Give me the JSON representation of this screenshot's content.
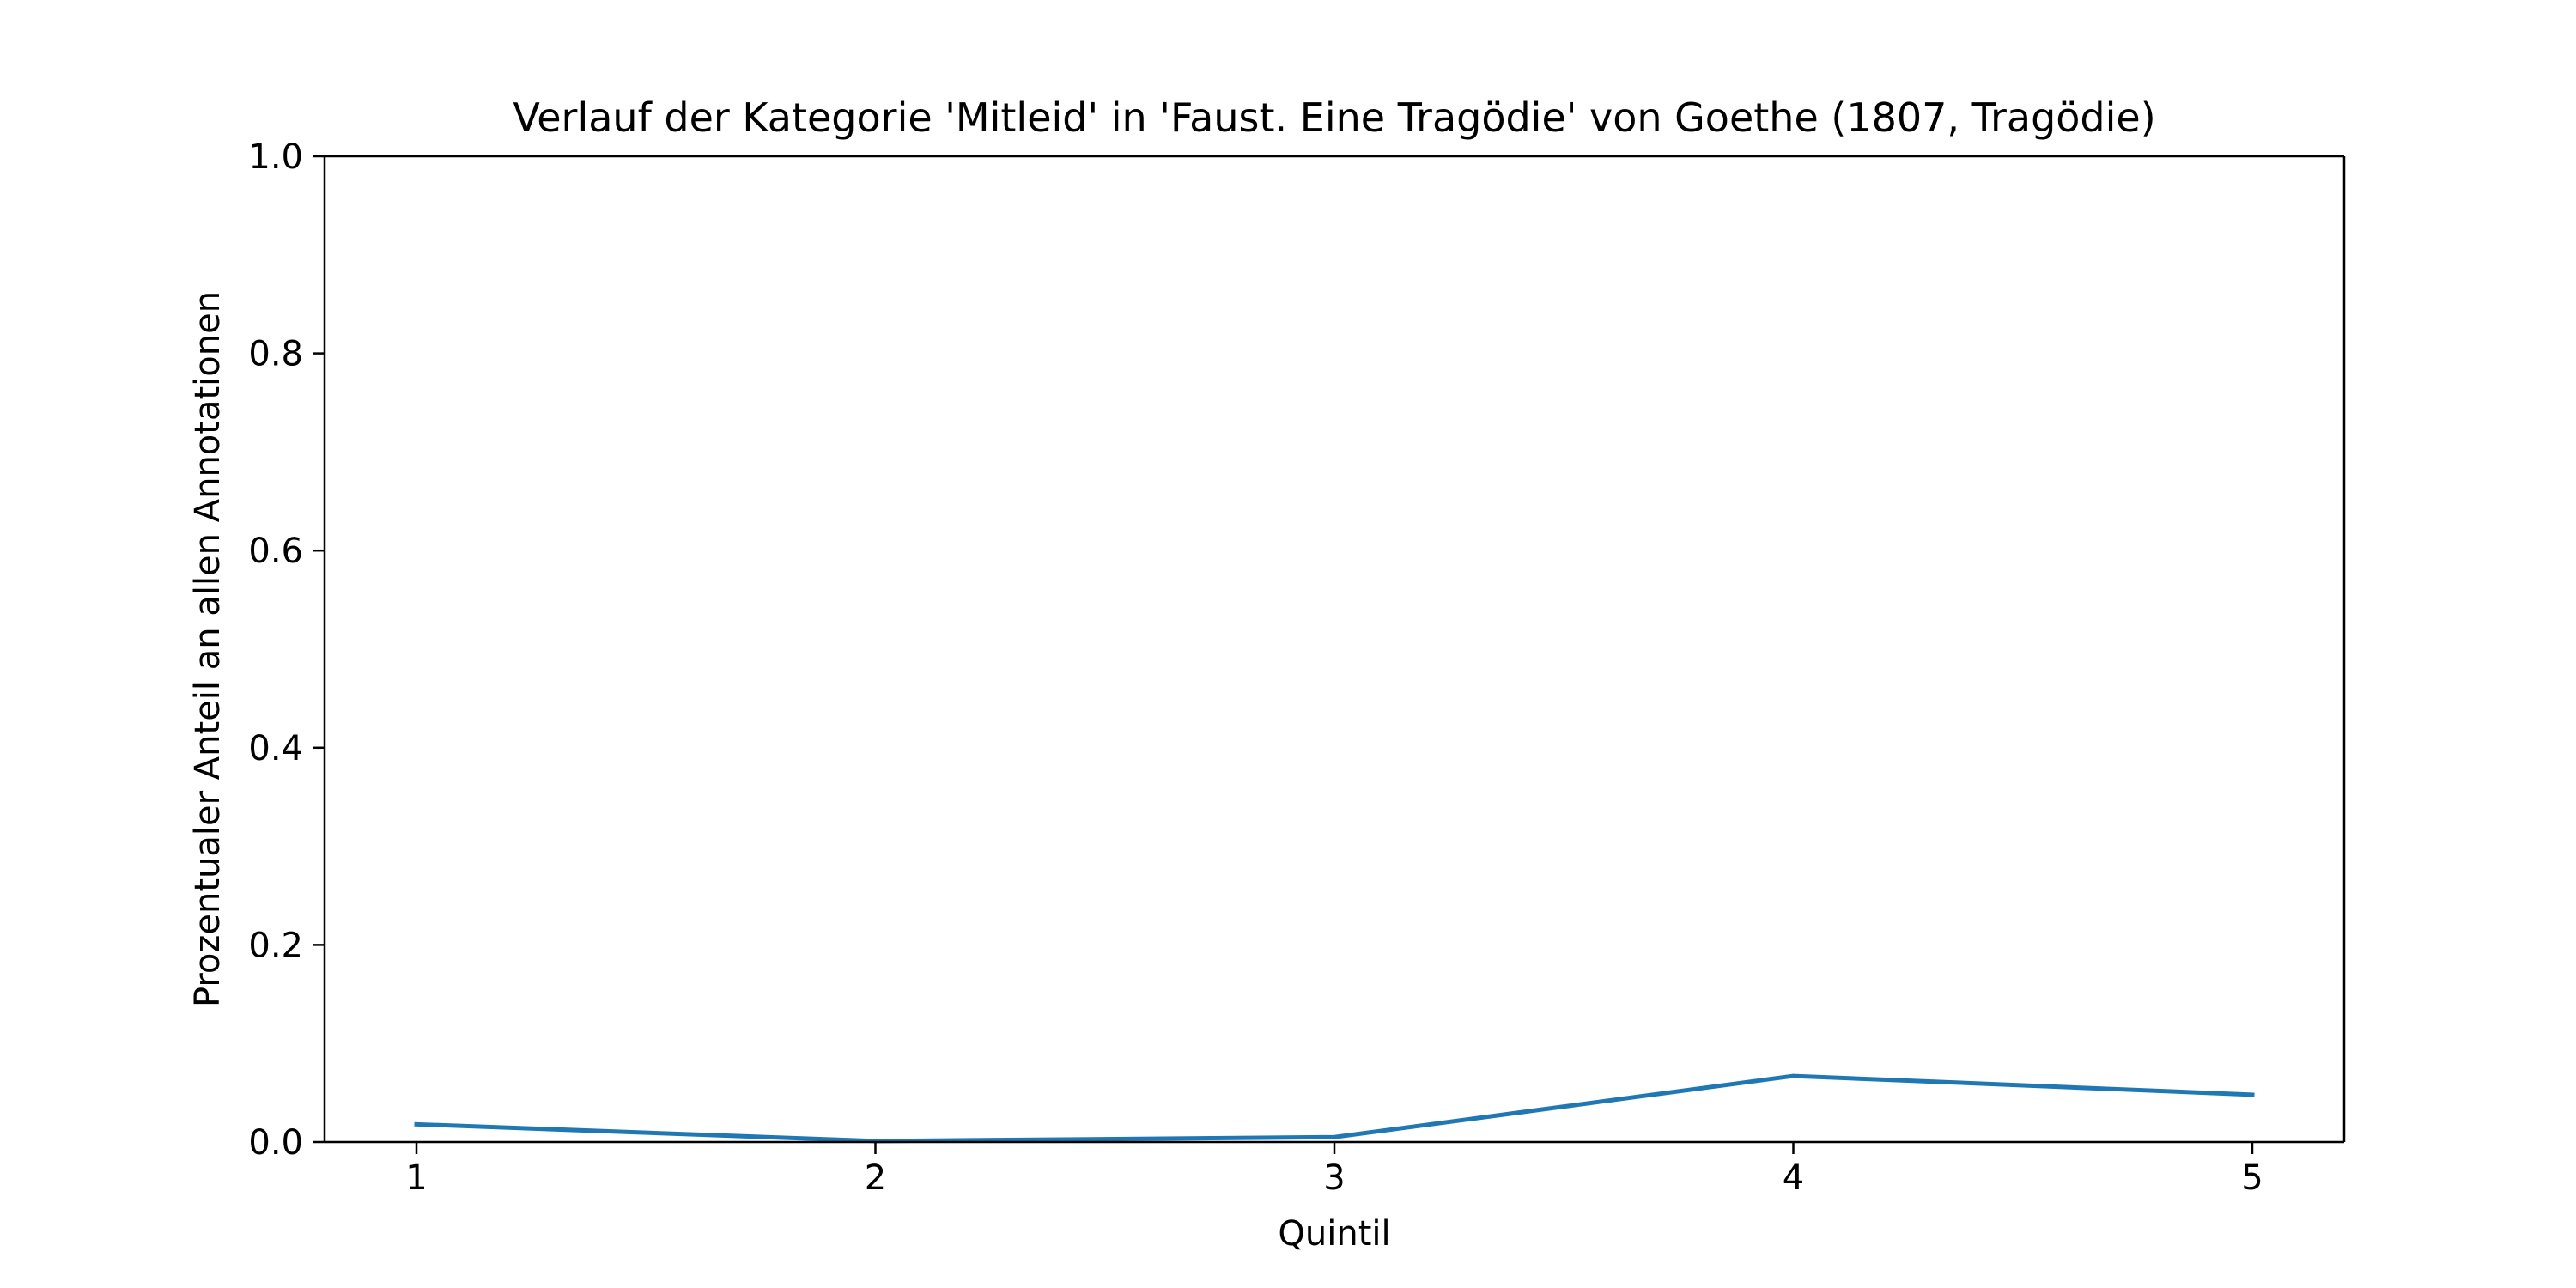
{
  "chart_data": {
    "type": "line",
    "title": "Verlauf der Kategorie 'Mitleid' in 'Faust. Eine Tragödie' von Goethe (1807, Tragödie)",
    "xlabel": "Quintil",
    "ylabel": "Prozentualer Anteil an allen Annotationen",
    "x": [
      1,
      2,
      3,
      4,
      5
    ],
    "x_tick_labels": [
      "1",
      "2",
      "3",
      "4",
      "5"
    ],
    "ylim": [
      0,
      1
    ],
    "y_ticks": [
      0.0,
      0.2,
      0.4,
      0.6,
      0.8,
      1.0
    ],
    "y_tick_labels": [
      "0.0",
      "0.2",
      "0.4",
      "0.6",
      "0.8",
      "1.0"
    ],
    "grid": false,
    "series": [
      {
        "values": [
          0.018,
          0.001,
          0.005,
          0.067,
          0.048
        ],
        "color": "#1f77b4"
      }
    ]
  }
}
